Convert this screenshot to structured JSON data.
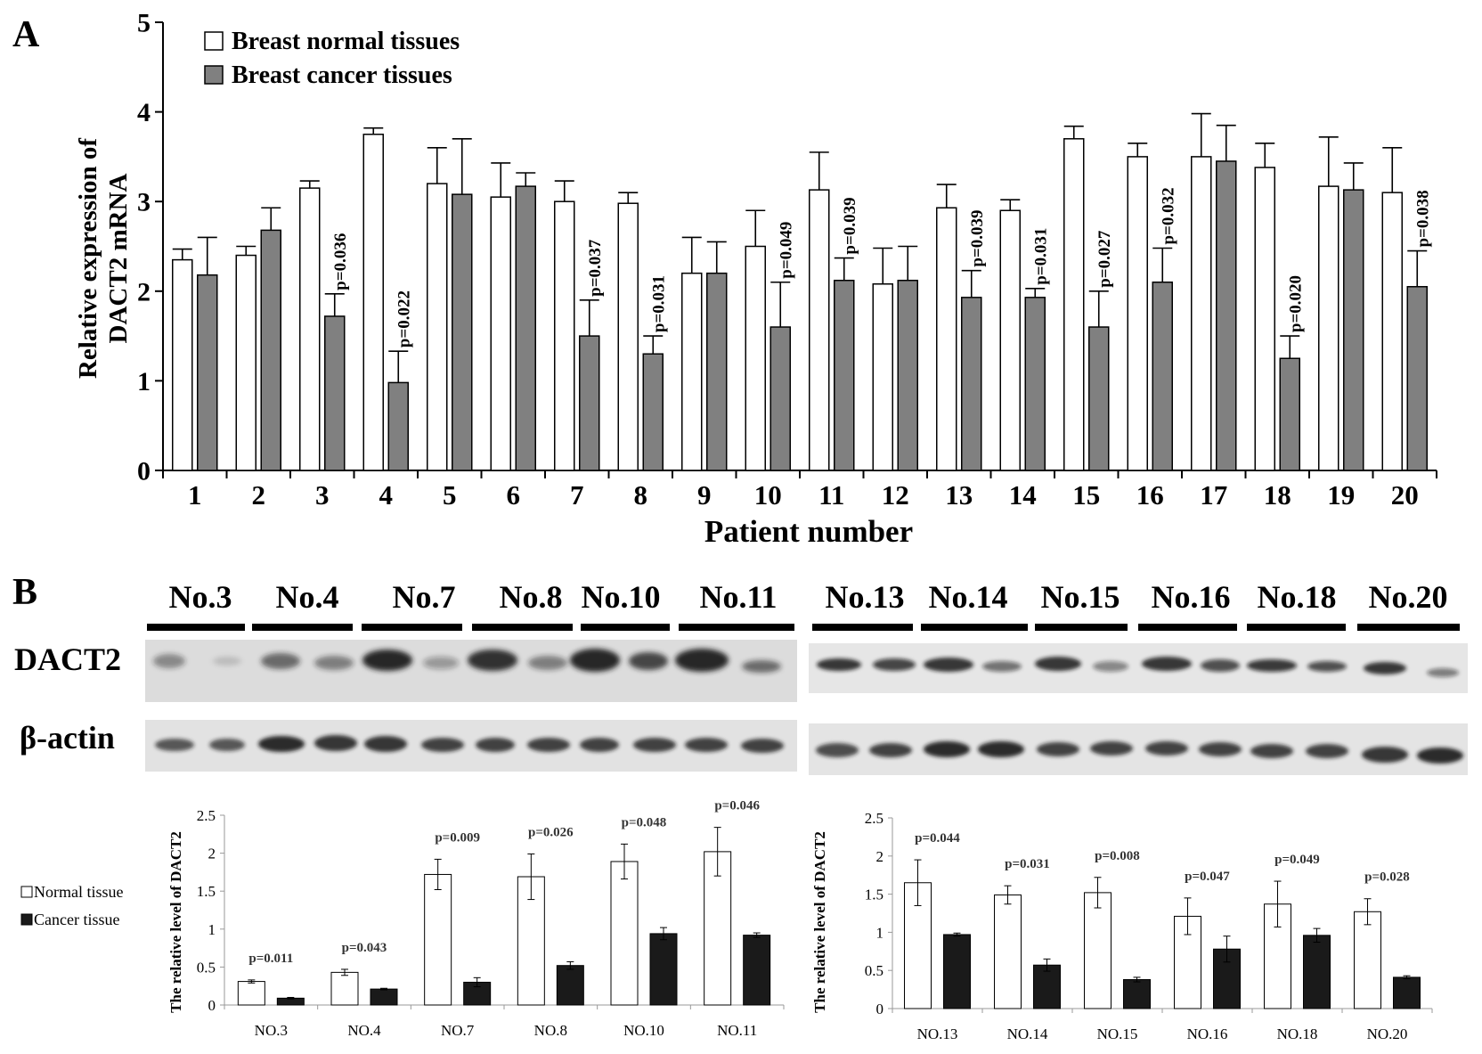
{
  "panel_a": {
    "letter": "A",
    "chart_data": {
      "type": "bar",
      "xlabel": "Patient number",
      "ylabel_line1": "Relative expression of",
      "ylabel_line2": "DACT2 mRNA",
      "ylim": [
        0,
        5
      ],
      "yticks": [
        "0",
        "1",
        "2",
        "3",
        "4",
        "5"
      ],
      "legend_position": "top-left",
      "categories": [
        "1",
        "2",
        "3",
        "4",
        "5",
        "6",
        "7",
        "8",
        "9",
        "10",
        "11",
        "12",
        "13",
        "14",
        "15",
        "16",
        "17",
        "18",
        "19",
        "20"
      ],
      "series": [
        {
          "name": "Breast normal tissues",
          "color": "#ffffff",
          "values": [
            2.35,
            2.4,
            3.15,
            3.75,
            3.2,
            3.05,
            3.0,
            2.98,
            2.2,
            2.5,
            3.13,
            2.08,
            2.93,
            2.9,
            3.7,
            3.5,
            3.5,
            3.38,
            3.17,
            3.1
          ],
          "errors": [
            0.12,
            0.1,
            0.08,
            0.07,
            0.4,
            0.38,
            0.23,
            0.12,
            0.4,
            0.4,
            0.42,
            0.4,
            0.26,
            0.12,
            0.14,
            0.15,
            0.48,
            0.27,
            0.55,
            0.5
          ]
        },
        {
          "name": "Breast cancer tissues",
          "color": "#808080",
          "values": [
            2.18,
            2.68,
            1.72,
            0.98,
            3.08,
            3.17,
            1.5,
            1.3,
            2.2,
            1.6,
            2.12,
            2.12,
            1.93,
            1.93,
            1.6,
            2.1,
            3.45,
            1.25,
            3.13,
            2.05
          ],
          "errors": [
            0.42,
            0.25,
            0.25,
            0.35,
            0.62,
            0.15,
            0.4,
            0.2,
            0.35,
            0.5,
            0.25,
            0.38,
            0.3,
            0.1,
            0.4,
            0.38,
            0.4,
            0.25,
            0.3,
            0.4
          ]
        }
      ],
      "annotations": [
        {
          "index": 2,
          "text": "p=0.036"
        },
        {
          "index": 3,
          "text": "p=0.022"
        },
        {
          "index": 6,
          "text": "p=0.037"
        },
        {
          "index": 7,
          "text": "p=0.031"
        },
        {
          "index": 9,
          "text": "p=0.049"
        },
        {
          "index": 10,
          "text": "p=0.039"
        },
        {
          "index": 12,
          "text": "p=0.039"
        },
        {
          "index": 13,
          "text": "p=0.031"
        },
        {
          "index": 14,
          "text": "p=0.027"
        },
        {
          "index": 15,
          "text": "p=0.032"
        },
        {
          "index": 17,
          "text": "p=0.020"
        },
        {
          "index": 19,
          "text": "p=0.038"
        }
      ]
    }
  },
  "panel_b": {
    "letter": "B",
    "blot": {
      "row_labels": [
        "DACT2",
        "β-actin"
      ],
      "left_lanes": [
        "No.3",
        "No.4",
        "No.7",
        "No.8",
        "No.10",
        "No.11"
      ],
      "right_lanes": [
        "No.13",
        "No.14",
        "No.15",
        "No.16",
        "No.18",
        "No.20"
      ]
    },
    "legend": [
      "Normal tissue",
      "Cancer tissue"
    ],
    "chart_data": [
      {
        "type": "bar",
        "ylabel": "The relative level of DACT2",
        "ylim": [
          0,
          2.5
        ],
        "yticks": [
          "0",
          "0.5",
          "1",
          "1.5",
          "2",
          "2.5"
        ],
        "categories": [
          "NO.3",
          "NO.4",
          "NO.7",
          "NO.8",
          "NO.10",
          "NO.11"
        ],
        "series": [
          {
            "name": "Normal tissue",
            "color": "#ffffff",
            "values": [
              0.31,
              0.43,
              1.72,
              1.69,
              1.89,
              2.02
            ],
            "errors": [
              0.02,
              0.04,
              0.2,
              0.3,
              0.23,
              0.32
            ]
          },
          {
            "name": "Cancer tissue",
            "color": "#1a1a1a",
            "values": [
              0.09,
              0.21,
              0.3,
              0.52,
              0.94,
              0.92
            ],
            "errors": [
              0.01,
              0.01,
              0.06,
              0.05,
              0.08,
              0.03
            ]
          }
        ],
        "annotations": [
          "p=0.011",
          "p=0.043",
          "p=0.009",
          "p=0.026",
          "p=0.048",
          "p=0.046"
        ]
      },
      {
        "type": "bar",
        "ylabel": "The relative level of DACT2",
        "ylim": [
          0,
          2.5
        ],
        "yticks": [
          "0",
          "0.5",
          "1",
          "1.5",
          "2",
          "2.5"
        ],
        "categories": [
          "NO.13",
          "NO.14",
          "NO.15",
          "NO.16",
          "NO.18",
          "NO.20"
        ],
        "series": [
          {
            "name": "Normal tissue",
            "color": "#ffffff",
            "values": [
              1.65,
              1.49,
              1.52,
              1.21,
              1.37,
              1.27
            ],
            "errors": [
              0.3,
              0.12,
              0.2,
              0.24,
              0.3,
              0.17
            ]
          },
          {
            "name": "Cancer tissue",
            "color": "#1a1a1a",
            "values": [
              0.97,
              0.57,
              0.38,
              0.78,
              0.96,
              0.41
            ],
            "errors": [
              0.02,
              0.08,
              0.03,
              0.17,
              0.09,
              0.02
            ]
          }
        ],
        "annotations": [
          "p=0.044",
          "p=0.031",
          "p=0.008",
          "p=0.047",
          "p=0.049",
          "p=0.028"
        ]
      }
    ]
  }
}
